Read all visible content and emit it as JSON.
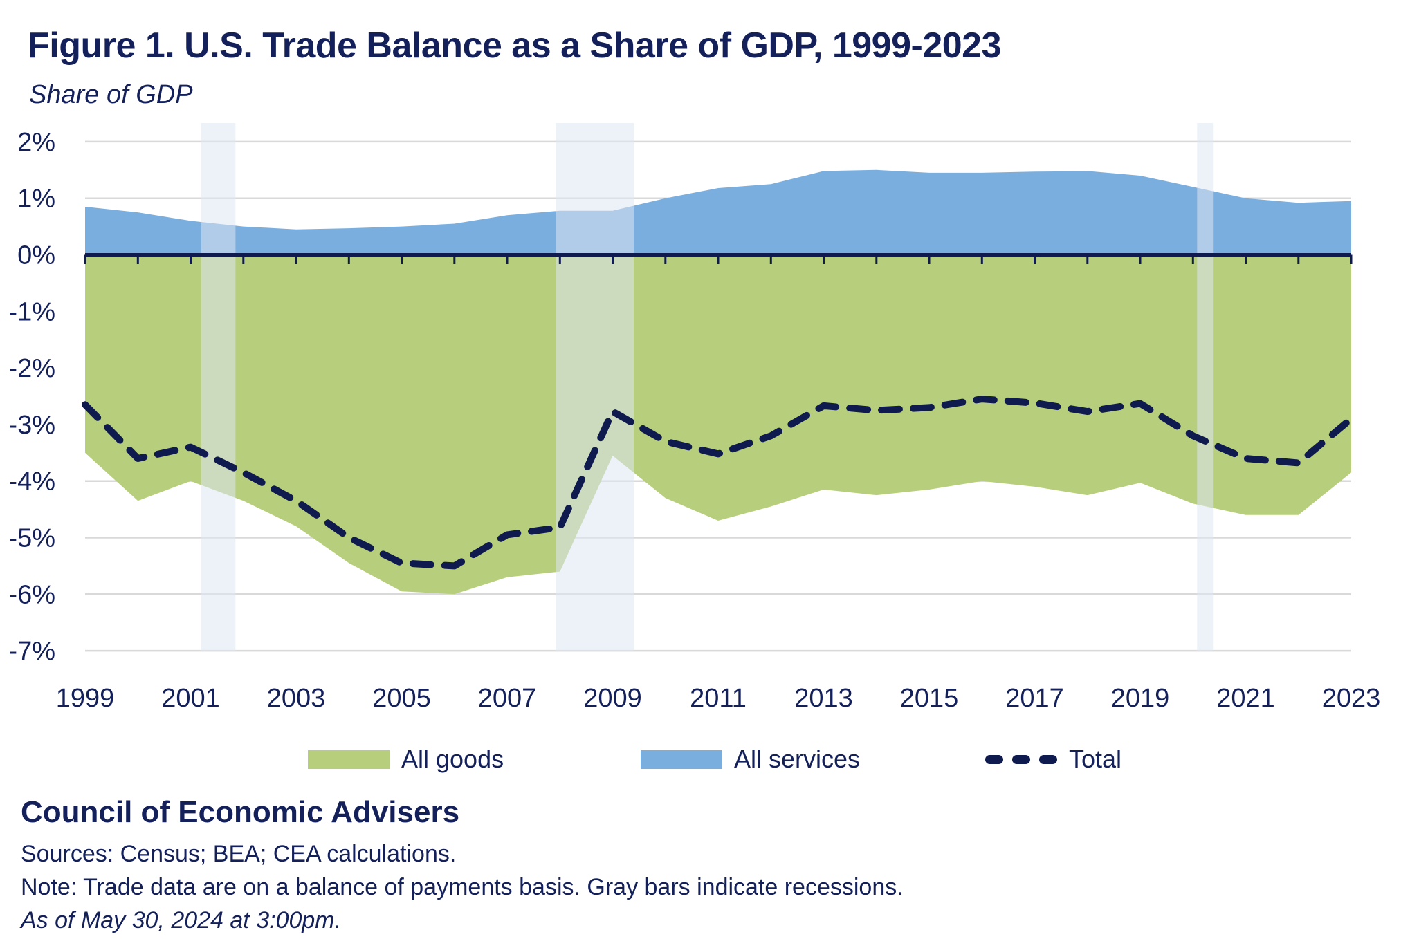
{
  "figure": {
    "title": "Figure 1. U.S. Trade Balance as a Share of GDP, 1999-2023",
    "y_axis_unit": "Share of GDP"
  },
  "legend": [
    {
      "label": "All goods",
      "swatch": "green-area"
    },
    {
      "label": "All services",
      "swatch": "blue-area"
    },
    {
      "label": "Total",
      "swatch": "navy-dashed-line"
    }
  ],
  "footer": {
    "org": "Council of Economic Advisers",
    "sources": "Sources: Census; BEA; CEA calculations.",
    "note": "Note: Trade data are on a balance of payments basis. Gray bars indicate recessions.",
    "asof": "As of May 30, 2024 at 3:00pm."
  },
  "colors": {
    "navy_text": "#14205a",
    "navy_line": "#0f1a4e",
    "goods_green": "#b7cf7d",
    "services_blue": "#7aaede",
    "gridline": "#d9d9d9",
    "recession_band": "rgba(223,230,242,0.55)"
  },
  "chart_data": {
    "type": "area",
    "title": "Figure 1. U.S. Trade Balance as a Share of GDP, 1999-2023",
    "ylabel": "Share of GDP",
    "xlabel": "",
    "x": [
      1999,
      2000,
      2001,
      2002,
      2003,
      2004,
      2005,
      2006,
      2007,
      2008,
      2009,
      2010,
      2011,
      2012,
      2013,
      2014,
      2015,
      2016,
      2017,
      2018,
      2019,
      2020,
      2021,
      2022,
      2023
    ],
    "series": [
      {
        "name": "All goods",
        "style": "area",
        "color": "#b7cf7d",
        "values": [
          -3.5,
          -4.35,
          -4.0,
          -4.35,
          -4.8,
          -5.45,
          -5.95,
          -6.0,
          -5.7,
          -5.6,
          -3.55,
          -4.3,
          -4.7,
          -4.45,
          -4.15,
          -4.25,
          -4.15,
          -4.0,
          -4.1,
          -4.25,
          -4.03,
          -4.4,
          -4.6,
          -4.6,
          -3.85
        ]
      },
      {
        "name": "All services",
        "style": "area",
        "color": "#7aaede",
        "values": [
          0.85,
          0.75,
          0.6,
          0.5,
          0.45,
          0.47,
          0.5,
          0.55,
          0.7,
          0.78,
          0.78,
          1.0,
          1.18,
          1.25,
          1.48,
          1.5,
          1.45,
          1.45,
          1.47,
          1.48,
          1.4,
          1.2,
          1.0,
          0.92,
          0.95
        ]
      },
      {
        "name": "Total",
        "style": "dashed-line",
        "color": "#0f1a4e",
        "values": [
          -2.65,
          -3.6,
          -3.4,
          -3.85,
          -4.35,
          -5.0,
          -5.45,
          -5.5,
          -4.95,
          -4.82,
          -2.77,
          -3.3,
          -3.52,
          -3.2,
          -2.67,
          -2.75,
          -2.7,
          -2.55,
          -2.62,
          -2.77,
          -2.63,
          -3.2,
          -3.6,
          -3.68,
          -2.9
        ]
      }
    ],
    "x_tick_labels": [
      "1999",
      "2001",
      "2003",
      "2005",
      "2007",
      "2009",
      "2011",
      "2013",
      "2015",
      "2017",
      "2019",
      "2021",
      "2023"
    ],
    "y_ticks": {
      "values": [
        2,
        1,
        0,
        -1,
        -2,
        -3,
        -4,
        -5,
        -6,
        -7
      ],
      "labels": [
        "2%",
        "1%",
        "0%",
        "-1%",
        "-2%",
        "-3%",
        "-4%",
        "-5%",
        "-6%",
        "-7%"
      ]
    },
    "ylim": [
      -7,
      2
    ],
    "grid": "horizontal",
    "legend_position": "bottom",
    "recessions": [
      [
        2001.2,
        2001.85
      ],
      [
        2007.92,
        2009.4
      ],
      [
        2020.08,
        2020.38
      ]
    ],
    "units": "percent of GDP"
  }
}
